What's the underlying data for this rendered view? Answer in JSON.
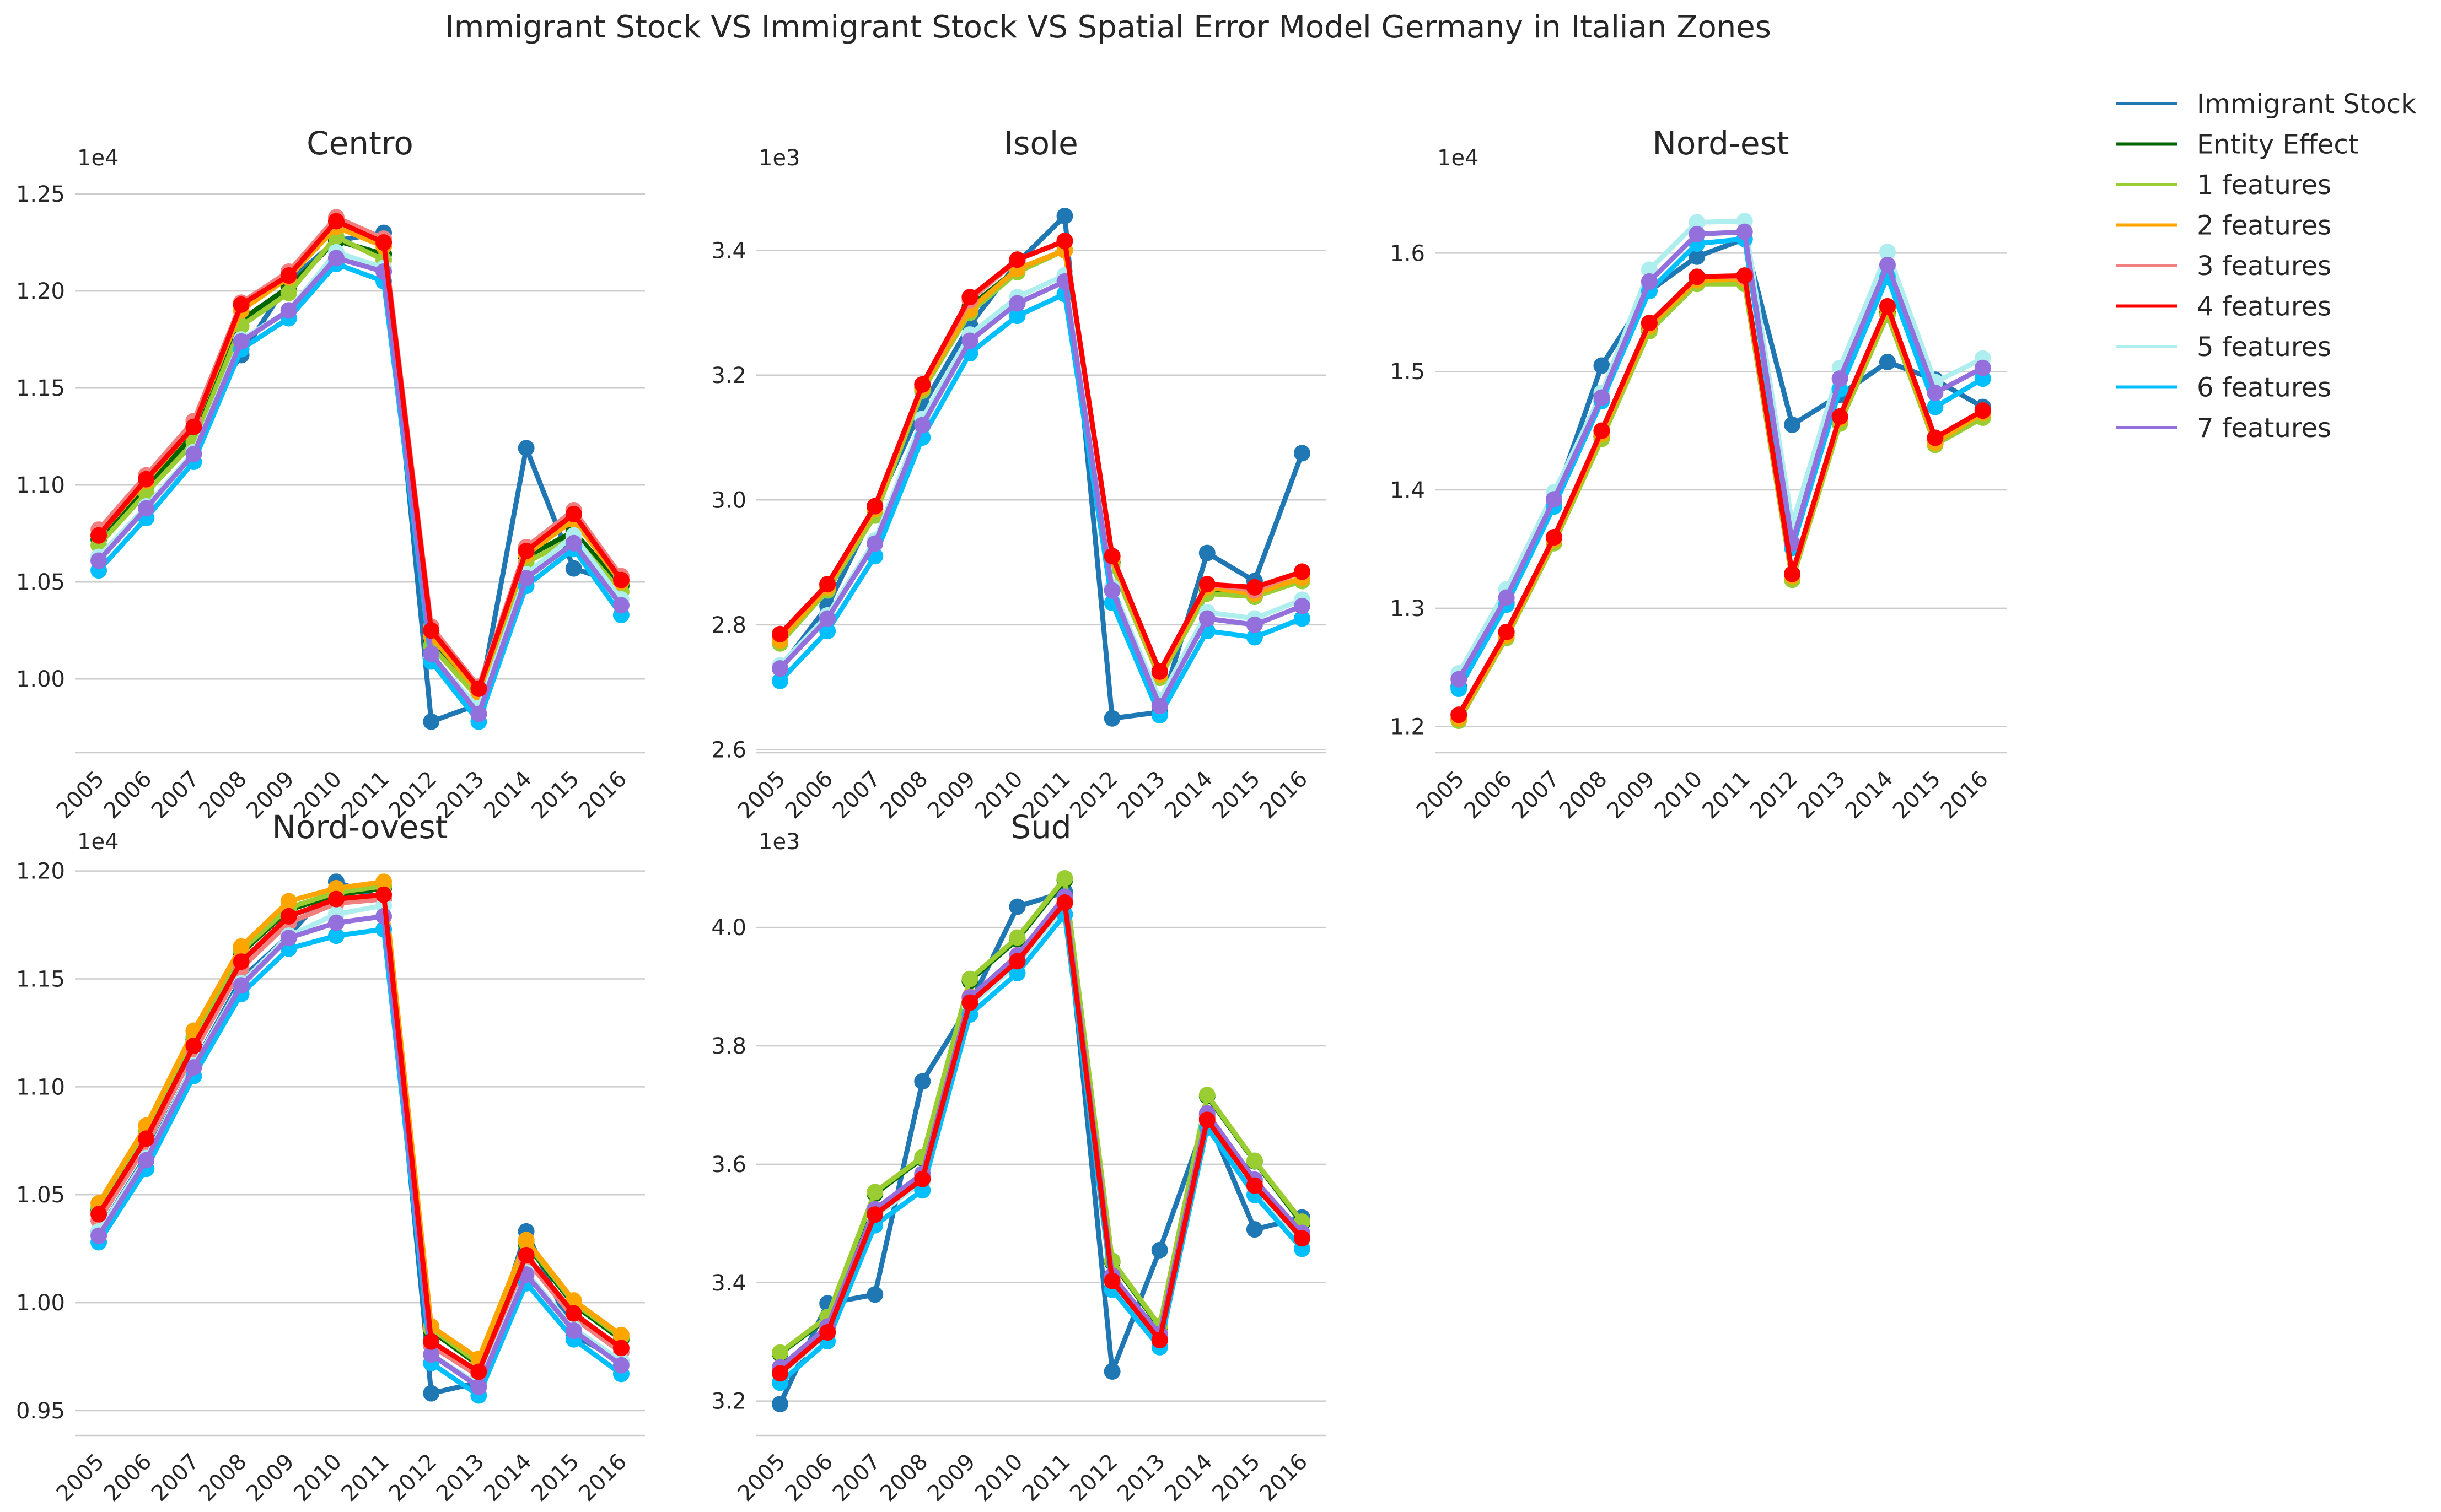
{
  "suptitle": "Immigrant Stock VS Immigrant Stock VS Spatial Error Model Germany in Italian Zones",
  "legend": {
    "placement": "top-right",
    "entries": [
      {
        "label": "Immigrant Stock",
        "color": "#1f77b4"
      },
      {
        "label": "Entity Effect",
        "color": "#006400"
      },
      {
        "label": "1 features",
        "color": "#9acd32"
      },
      {
        "label": "2 features",
        "color": "#ffa500"
      },
      {
        "label": "3 features",
        "color": "#f08080"
      },
      {
        "label": "4 features",
        "color": "#ff0000"
      },
      {
        "label": "5 features",
        "color": "#afeeee"
      },
      {
        "label": "6 features",
        "color": "#00bfff"
      },
      {
        "label": "7 features",
        "color": "#9370db"
      }
    ]
  },
  "chart_data": [
    {
      "type": "line",
      "title": "Centro",
      "scale_label": "1e4",
      "scale": 10000,
      "categories": [
        "2005",
        "2006",
        "2007",
        "2008",
        "2009",
        "2010",
        "2011",
        "2012",
        "2013",
        "2014",
        "2015",
        "2016"
      ],
      "ylim": [
        0.962,
        1.258
      ],
      "yticks": [
        1.0,
        1.05,
        1.1,
        1.15,
        1.2,
        1.25
      ],
      "ytick_labels": [
        "1.00",
        "1.05",
        "1.10",
        "1.15",
        "1.20",
        "1.25"
      ],
      "grid": "y",
      "series": [
        {
          "name": "Immigrant Stock",
          "values": [
            1.074,
            1.102,
            1.129,
            1.167,
            1.205,
            1.226,
            1.23,
            0.978,
            0.987,
            1.119,
            1.057,
            1.049
          ]
        },
        {
          "name": "Entity Effect",
          "values": [
            1.072,
            1.099,
            1.126,
            1.185,
            1.202,
            1.226,
            1.219,
            1.019,
            0.991,
            1.063,
            1.076,
            1.048
          ]
        },
        {
          "name": "1 features",
          "values": [
            1.069,
            1.096,
            1.122,
            1.182,
            1.199,
            1.228,
            1.216,
            1.017,
            0.99,
            1.06,
            1.073,
            1.045
          ]
        },
        {
          "name": "2 features",
          "values": [
            1.074,
            1.102,
            1.13,
            1.19,
            1.207,
            1.233,
            1.223,
            1.022,
            0.993,
            1.064,
            1.082,
            1.05
          ]
        },
        {
          "name": "3 features",
          "values": [
            1.077,
            1.105,
            1.133,
            1.194,
            1.21,
            1.238,
            1.227,
            1.027,
            0.996,
            1.068,
            1.087,
            1.053
          ]
        },
        {
          "name": "4 features",
          "values": [
            1.074,
            1.103,
            1.13,
            1.193,
            1.208,
            1.236,
            1.225,
            1.025,
            0.995,
            1.066,
            1.085,
            1.051
          ]
        },
        {
          "name": "5 features",
          "values": [
            1.063,
            1.089,
            1.117,
            1.175,
            1.19,
            1.22,
            1.212,
            1.012,
            0.985,
            1.054,
            1.074,
            1.041
          ]
        },
        {
          "name": "6 features",
          "values": [
            1.056,
            1.083,
            1.112,
            1.17,
            1.186,
            1.214,
            1.205,
            1.009,
            0.978,
            1.048,
            1.067,
            1.033
          ]
        },
        {
          "name": "7 features",
          "values": [
            1.061,
            1.088,
            1.116,
            1.174,
            1.19,
            1.217,
            1.21,
            1.013,
            0.982,
            1.052,
            1.07,
            1.038
          ]
        }
      ]
    },
    {
      "type": "line",
      "title": "Isole",
      "scale_label": "1e3",
      "scale": 1000,
      "categories": [
        "2005",
        "2006",
        "2007",
        "2008",
        "2009",
        "2010",
        "2011",
        "2012",
        "2013",
        "2014",
        "2015",
        "2016"
      ],
      "ylim": [
        2.595,
        3.515
      ],
      "yticks": [
        2.6,
        2.8,
        3.0,
        3.2,
        3.4
      ],
      "ytick_labels": [
        "2.6",
        "2.8",
        "3.0",
        "3.2",
        "3.4"
      ],
      "grid": "y",
      "series": [
        {
          "name": "Immigrant Stock",
          "values": [
            2.73,
            2.83,
            2.985,
            3.15,
            3.28,
            3.38,
            3.455,
            2.65,
            2.66,
            2.915,
            2.87,
            3.075
          ]
        },
        {
          "name": "Entity Effect",
          "values": [
            2.775,
            2.86,
            2.98,
            3.18,
            3.31,
            3.37,
            3.4,
            2.9,
            2.72,
            2.855,
            2.845,
            2.875
          ]
        },
        {
          "name": "1 features",
          "values": [
            2.77,
            2.855,
            2.975,
            3.175,
            3.3,
            3.365,
            3.4,
            2.895,
            2.715,
            2.85,
            2.845,
            2.87
          ]
        },
        {
          "name": "2 features",
          "values": [
            2.775,
            2.86,
            2.985,
            3.18,
            3.305,
            3.37,
            3.4,
            2.905,
            2.72,
            2.86,
            2.85,
            2.875
          ]
        },
        {
          "name": "3 features",
          "values": [
            2.785,
            2.865,
            2.99,
            3.185,
            3.32,
            3.385,
            3.415,
            2.91,
            2.725,
            2.865,
            2.855,
            2.885
          ]
        },
        {
          "name": "4 features",
          "values": [
            2.785,
            2.865,
            2.99,
            3.185,
            3.325,
            3.385,
            3.415,
            2.91,
            2.725,
            2.865,
            2.86,
            2.885
          ]
        },
        {
          "name": "5 features",
          "values": [
            2.735,
            2.815,
            2.935,
            3.13,
            3.265,
            3.325,
            3.36,
            2.86,
            2.68,
            2.82,
            2.81,
            2.84
          ]
        },
        {
          "name": "6 features",
          "values": [
            2.71,
            2.79,
            2.91,
            3.1,
            3.235,
            3.295,
            3.33,
            2.835,
            2.655,
            2.79,
            2.78,
            2.81
          ]
        },
        {
          "name": "7 features",
          "values": [
            2.73,
            2.81,
            2.93,
            3.12,
            3.255,
            3.315,
            3.35,
            2.855,
            2.67,
            2.81,
            2.8,
            2.83
          ]
        }
      ]
    },
    {
      "type": "line",
      "title": "Nord-est",
      "scale_label": "1e4",
      "scale": 10000,
      "categories": [
        "2005",
        "2006",
        "2007",
        "2008",
        "2009",
        "2010",
        "2011",
        "2012",
        "2013",
        "2014",
        "2015",
        "2016"
      ],
      "ylim": [
        1.178,
        1.663
      ],
      "yticks": [
        1.2,
        1.3,
        1.4,
        1.5,
        1.6
      ],
      "ytick_labels": [
        "1.2",
        "1.3",
        "1.4",
        "1.5",
        "1.6"
      ],
      "grid": "y",
      "series": [
        {
          "name": "Immigrant Stock",
          "values": [
            1.234,
            1.305,
            1.39,
            1.505,
            1.568,
            1.597,
            1.612,
            1.455,
            1.48,
            1.508,
            1.493,
            1.47
          ]
        },
        {
          "name": "Entity Effect",
          "values": [
            1.206,
            1.276,
            1.357,
            1.445,
            1.536,
            1.575,
            1.576,
            1.325,
            1.458,
            1.55,
            1.439,
            1.463
          ]
        },
        {
          "name": "1 features",
          "values": [
            1.205,
            1.275,
            1.355,
            1.443,
            1.534,
            1.574,
            1.574,
            1.324,
            1.456,
            1.548,
            1.438,
            1.461
          ]
        },
        {
          "name": "2 features",
          "values": [
            1.207,
            1.277,
            1.358,
            1.447,
            1.538,
            1.577,
            1.578,
            1.327,
            1.46,
            1.553,
            1.44,
            1.465
          ]
        },
        {
          "name": "3 features",
          "values": [
            1.21,
            1.28,
            1.36,
            1.45,
            1.541,
            1.58,
            1.58,
            1.329,
            1.462,
            1.555,
            1.444,
            1.467
          ]
        },
        {
          "name": "4 features",
          "values": [
            1.21,
            1.28,
            1.36,
            1.45,
            1.541,
            1.58,
            1.581,
            1.329,
            1.462,
            1.555,
            1.444,
            1.467
          ]
        },
        {
          "name": "5 features",
          "values": [
            1.245,
            1.316,
            1.398,
            1.482,
            1.586,
            1.626,
            1.627,
            1.371,
            1.503,
            1.601,
            1.491,
            1.511
          ]
        },
        {
          "name": "6 features",
          "values": [
            1.232,
            1.303,
            1.386,
            1.475,
            1.568,
            1.608,
            1.612,
            1.351,
            1.485,
            1.58,
            1.47,
            1.494
          ]
        },
        {
          "name": "7 features",
          "values": [
            1.24,
            1.309,
            1.392,
            1.478,
            1.576,
            1.616,
            1.618,
            1.355,
            1.494,
            1.59,
            1.482,
            1.503
          ]
        }
      ]
    },
    {
      "type": "line",
      "title": "Nord-ovest",
      "scale_label": "1e4",
      "scale": 10000,
      "categories": [
        "2005",
        "2006",
        "2007",
        "2008",
        "2009",
        "2010",
        "2011",
        "2012",
        "2013",
        "2014",
        "2015",
        "2016"
      ],
      "ylim": [
        0.9385,
        1.204
      ],
      "yticks": [
        0.95,
        1.0,
        1.05,
        1.1,
        1.15,
        1.2
      ],
      "ytick_labels": [
        "0.95",
        "1.00",
        "1.05",
        "1.10",
        "1.15",
        "1.20"
      ],
      "grid": "y",
      "series": [
        {
          "name": "Immigrant Stock",
          "values": [
            1.033,
            1.068,
            1.11,
            1.15,
            1.17,
            1.195,
            1.187,
            0.958,
            0.963,
            1.033,
            0.985,
            0.973
          ]
        },
        {
          "name": "Entity Effect",
          "values": [
            1.043,
            1.078,
            1.122,
            1.162,
            1.182,
            1.189,
            1.192,
            0.987,
            0.971,
            1.027,
            0.999,
            0.983
          ]
        },
        {
          "name": "1 features",
          "values": [
            1.044,
            1.079,
            1.123,
            1.163,
            1.183,
            1.19,
            1.193,
            0.988,
            0.972,
            1.028,
            1.0,
            0.984
          ]
        },
        {
          "name": "2 features",
          "values": [
            1.046,
            1.082,
            1.126,
            1.165,
            1.186,
            1.192,
            1.195,
            0.989,
            0.974,
            1.029,
            1.001,
            0.985
          ]
        },
        {
          "name": "3 features",
          "values": [
            1.038,
            1.073,
            1.116,
            1.155,
            1.176,
            1.185,
            1.187,
            0.98,
            0.966,
            1.02,
            0.993,
            0.977
          ]
        },
        {
          "name": "4 features",
          "values": [
            1.041,
            1.076,
            1.119,
            1.158,
            1.179,
            1.187,
            1.189,
            0.982,
            0.968,
            1.022,
            0.995,
            0.979
          ]
        },
        {
          "name": "5 features",
          "values": [
            1.033,
            1.067,
            1.11,
            1.148,
            1.17,
            1.18,
            1.184,
            0.976,
            0.962,
            1.014,
            0.988,
            0.973
          ]
        },
        {
          "name": "6 features",
          "values": [
            1.028,
            1.062,
            1.105,
            1.143,
            1.164,
            1.17,
            1.173,
            0.972,
            0.957,
            1.009,
            0.983,
            0.967
          ]
        },
        {
          "name": "7 features",
          "values": [
            1.031,
            1.066,
            1.109,
            1.147,
            1.169,
            1.176,
            1.179,
            0.976,
            0.961,
            1.013,
            0.987,
            0.971
          ]
        }
      ]
    },
    {
      "type": "line",
      "title": "Sud",
      "scale_label": "1e3",
      "scale": 1000,
      "categories": [
        "2005",
        "2006",
        "2007",
        "2008",
        "2009",
        "2010",
        "2011",
        "2012",
        "2013",
        "2014",
        "2015",
        "2016"
      ],
      "ylim": [
        3.142,
        4.11
      ],
      "yticks": [
        3.2,
        3.4,
        3.6,
        3.8,
        4.0
      ],
      "ytick_labels": [
        "3.2",
        "3.4",
        "3.6",
        "3.8",
        "4.0"
      ],
      "grid": "y",
      "series": [
        {
          "name": "Immigrant Stock",
          "values": [
            3.195,
            3.365,
            3.38,
            3.74,
            3.87,
            4.035,
            4.06,
            3.25,
            3.455,
            3.68,
            3.49,
            3.51
          ]
        },
        {
          "name": "Entity Effect",
          "values": [
            3.28,
            3.34,
            3.55,
            3.61,
            3.91,
            3.98,
            4.08,
            3.435,
            3.325,
            3.715,
            3.605,
            3.5
          ]
        },
        {
          "name": "1 features",
          "values": [
            3.282,
            3.342,
            3.553,
            3.612,
            3.913,
            3.983,
            4.083,
            3.437,
            3.327,
            3.717,
            3.606,
            3.503
          ]
        },
        {
          "name": "2 features",
          "values": [
            3.252,
            3.321,
            3.521,
            3.581,
            3.883,
            3.95,
            4.05,
            3.409,
            3.309,
            3.683,
            3.571,
            3.483
          ]
        },
        {
          "name": "3 features",
          "values": [
            3.252,
            3.321,
            3.521,
            3.581,
            3.88,
            3.95,
            4.05,
            3.408,
            3.307,
            3.683,
            3.571,
            3.483
          ]
        },
        {
          "name": "4 features",
          "values": [
            3.247,
            3.316,
            3.515,
            3.575,
            3.873,
            3.943,
            4.042,
            3.403,
            3.303,
            3.675,
            3.564,
            3.475
          ]
        },
        {
          "name": "5 features",
          "values": [
            3.244,
            3.313,
            3.511,
            3.571,
            3.868,
            3.938,
            4.037,
            3.4,
            3.3,
            3.67,
            3.56,
            3.471
          ]
        },
        {
          "name": "6 features",
          "values": [
            3.231,
            3.301,
            3.497,
            3.556,
            3.853,
            3.923,
            4.022,
            3.388,
            3.291,
            3.662,
            3.548,
            3.457
          ]
        },
        {
          "name": "7 features",
          "values": [
            3.257,
            3.326,
            3.524,
            3.584,
            3.882,
            3.953,
            4.052,
            3.412,
            3.313,
            3.686,
            3.574,
            3.484
          ]
        }
      ]
    }
  ]
}
